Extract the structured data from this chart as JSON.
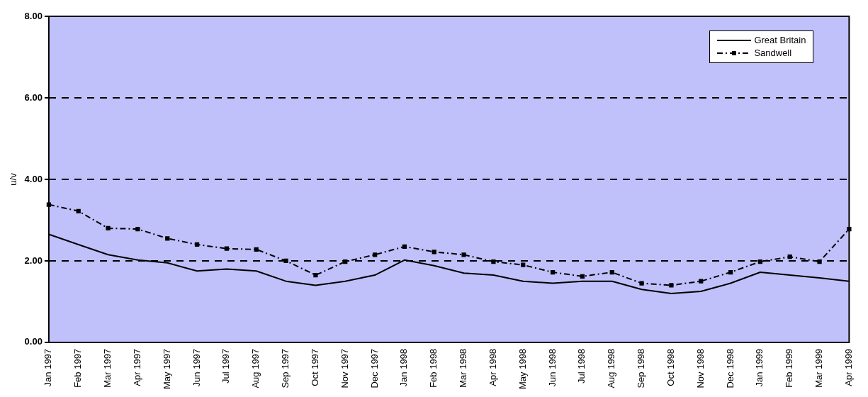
{
  "chart_data": {
    "type": "line",
    "ylabel": "u/v",
    "categories": [
      "Jan 1997",
      "Feb 1997",
      "Mar 1997",
      "Apr 1997",
      "May 1997",
      "Jun 1997",
      "Jul 1997",
      "Aug 1997",
      "Sep 1997",
      "Oct 1997",
      "Nov 1997",
      "Dec 1997",
      "Jan 1998",
      "Feb 1998",
      "Mar 1998",
      "Apr 1998",
      "May 1998",
      "Jun 1998",
      "Jul 1998",
      "Aug 1998",
      "Sep 1998",
      "Oct 1998",
      "Nov 1998",
      "Dec 1998",
      "Jan 1999",
      "Feb 1999",
      "Mar 1999",
      "Apr 1999"
    ],
    "series": [
      {
        "name": "Great Britain",
        "color": "#000000",
        "line_style": "solid",
        "marker": "none",
        "values": [
          2.65,
          2.4,
          2.15,
          2.02,
          1.95,
          1.75,
          1.8,
          1.75,
          1.5,
          1.4,
          1.5,
          1.65,
          2.02,
          1.88,
          1.7,
          1.65,
          1.5,
          1.45,
          1.5,
          1.5,
          1.3,
          1.2,
          1.25,
          1.45,
          1.72,
          1.65,
          1.58,
          1.5
        ]
      },
      {
        "name": "Sandwell",
        "color": "#000000",
        "line_style": "dashed",
        "marker": "square",
        "values": [
          3.38,
          3.22,
          2.8,
          2.78,
          2.55,
          2.4,
          2.3,
          2.28,
          2.0,
          1.65,
          1.98,
          2.15,
          2.35,
          2.22,
          2.15,
          1.98,
          1.9,
          1.72,
          1.62,
          1.72,
          1.45,
          1.4,
          1.5,
          1.72,
          1.98,
          2.1,
          1.98,
          2.78
        ]
      }
    ],
    "ylim": [
      0,
      8
    ],
    "yticks": [
      {
        "value": 0,
        "label": "0.00"
      },
      {
        "value": 2,
        "label": "2.00"
      },
      {
        "value": 4,
        "label": "4.00"
      },
      {
        "value": 6,
        "label": "6.00"
      },
      {
        "value": 8,
        "label": "8.00"
      }
    ],
    "grid": "y",
    "legend": "top right"
  }
}
